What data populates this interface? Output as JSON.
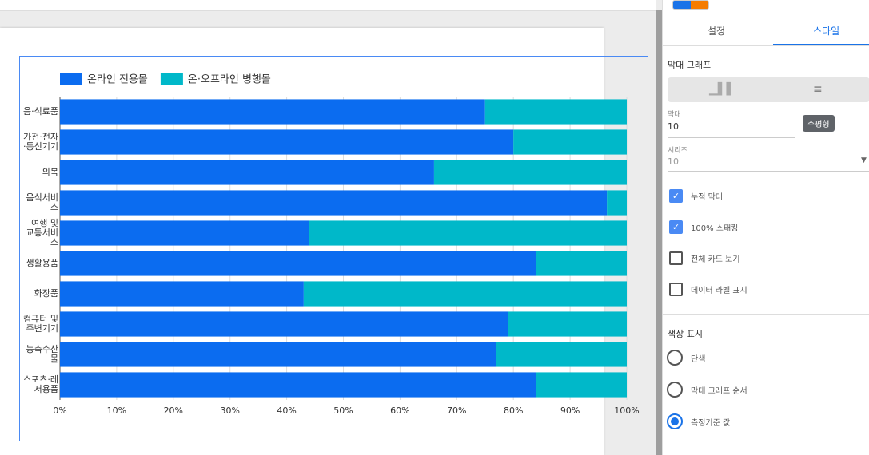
{
  "chart_data": {
    "type": "stacked-barh",
    "categories": [
      "음·식료품",
      "가전·전자·통신기기",
      "의복",
      "음식서비스",
      "여행 및 교통서비스",
      "생활용품",
      "화장품",
      "컴퓨터 및 주변기기",
      "농축수산물",
      "스포츠·레저용품"
    ],
    "series": [
      {
        "name": "온라인 전용몰",
        "color": "#0b6cf0",
        "values": [
          75,
          80,
          66,
          96.5,
          44,
          84,
          43,
          79,
          77,
          84
        ]
      },
      {
        "name": "온·오프라인 병행몰",
        "color": "#00b8c9",
        "values": [
          25,
          20,
          34,
          3.5,
          56,
          16,
          57,
          21,
          23,
          16
        ]
      }
    ],
    "xlim": [
      0,
      100
    ],
    "xticks": [
      {
        "value": 0,
        "label": "0%"
      },
      {
        "value": 10,
        "label": "10%"
      },
      {
        "value": 20,
        "label": "20%"
      },
      {
        "value": 30,
        "label": "30%"
      },
      {
        "value": 40,
        "label": "40%"
      },
      {
        "value": 50,
        "label": "50%"
      },
      {
        "value": 60,
        "label": "60%"
      },
      {
        "value": 70,
        "label": "70%"
      },
      {
        "value": 80,
        "label": "80%"
      },
      {
        "value": 90,
        "label": "90%"
      },
      {
        "value": 100,
        "label": "100%"
      }
    ],
    "grid": true,
    "legend": "top-left"
  },
  "panel": {
    "tabs": [
      "설정",
      "스타일"
    ],
    "section_bar": "막대 그래프",
    "tooltip": "수평형",
    "bars_label": "막대",
    "bars_value": "10",
    "series_label": "시리즈",
    "series_value": "10",
    "checkboxes": [
      {
        "label": "누적 막대",
        "checked": true
      },
      {
        "label": "100% 스태킹",
        "checked": true
      },
      {
        "label": "전체 카드 보기",
        "checked": false
      },
      {
        "label": "데이터 라벨 표시",
        "checked": false
      }
    ],
    "section_color": "색상 표시",
    "radios": [
      {
        "label": "단색",
        "selected": false
      },
      {
        "label": "막대 그래프 순서",
        "selected": false
      },
      {
        "label": "측정기준 값",
        "selected": true
      }
    ]
  }
}
